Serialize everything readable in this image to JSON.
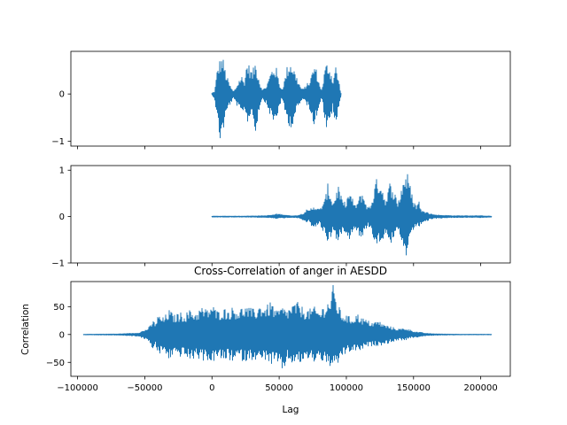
{
  "chart_data": [
    {
      "type": "line",
      "signal": "waveform-1",
      "xlim": [
        -105000,
        222000
      ],
      "ylim": [
        -1.1,
        0.9
      ],
      "yticks": [
        -1,
        0
      ],
      "xticks": [
        -100000,
        -50000,
        0,
        50000,
        100000,
        150000,
        200000
      ],
      "show_xtick_labels": false,
      "color": "#1f77b4",
      "data_range": [
        0,
        96000
      ],
      "envelope_x": [
        0,
        2000,
        4000,
        6000,
        8000,
        10000,
        12000,
        14000,
        16000,
        18000,
        20000,
        22000,
        24000,
        26000,
        28000,
        30000,
        32000,
        34000,
        36000,
        38000,
        40000,
        42000,
        44000,
        46000,
        48000,
        50000,
        52000,
        54000,
        56000,
        58000,
        60000,
        62000,
        64000,
        66000,
        68000,
        70000,
        72000,
        74000,
        76000,
        78000,
        80000,
        82000,
        84000,
        86000,
        88000,
        90000,
        92000,
        94000,
        96000
      ],
      "envelope_max": [
        0.02,
        0.05,
        0.55,
        0.75,
        0.8,
        0.5,
        0.3,
        0.15,
        0.05,
        0.15,
        0.3,
        0.4,
        0.25,
        0.7,
        0.6,
        0.45,
        0.7,
        0.5,
        0.2,
        0.1,
        0.15,
        0.3,
        0.5,
        0.6,
        0.55,
        0.25,
        0.1,
        0.3,
        0.6,
        0.7,
        0.65,
        0.45,
        0.3,
        0.15,
        0.1,
        0.2,
        0.25,
        0.4,
        0.65,
        0.5,
        0.2,
        0.1,
        0.55,
        0.7,
        0.55,
        0.3,
        0.62,
        0.35,
        0.02
      ],
      "envelope_min": [
        -0.02,
        -0.1,
        -0.6,
        -1.0,
        -0.85,
        -0.55,
        -0.3,
        -0.2,
        -0.1,
        -0.2,
        -0.35,
        -0.45,
        -0.3,
        -0.6,
        -0.55,
        -0.35,
        -0.9,
        -0.55,
        -0.2,
        -0.1,
        -0.2,
        -0.35,
        -0.5,
        -0.65,
        -0.55,
        -0.3,
        -0.1,
        -0.35,
        -0.6,
        -0.7,
        -0.7,
        -0.45,
        -0.3,
        -0.2,
        -0.1,
        -0.2,
        -0.3,
        -0.4,
        -0.7,
        -0.5,
        -0.2,
        -0.1,
        -0.6,
        -0.85,
        -0.6,
        -0.3,
        -0.8,
        -0.4,
        -0.02
      ]
    },
    {
      "type": "line",
      "signal": "waveform-2",
      "xlim": [
        -105000,
        222000
      ],
      "ylim": [
        -1.0,
        1.1
      ],
      "yticks": [
        -1,
        0,
        1
      ],
      "xticks": [
        -100000,
        -50000,
        0,
        50000,
        100000,
        150000,
        200000
      ],
      "show_xtick_labels": false,
      "color": "#1f77b4",
      "data_range": [
        0,
        208000
      ],
      "envelope_x": [
        0,
        20000,
        40000,
        46000,
        48000,
        52000,
        58000,
        62000,
        64000,
        66000,
        68000,
        70000,
        72000,
        74000,
        76000,
        78000,
        80000,
        82000,
        84000,
        86000,
        88000,
        90000,
        92000,
        94000,
        96000,
        98000,
        100000,
        102000,
        104000,
        106000,
        108000,
        110000,
        112000,
        114000,
        116000,
        118000,
        120000,
        122000,
        124000,
        126000,
        128000,
        130000,
        132000,
        134000,
        136000,
        138000,
        140000,
        142000,
        144000,
        146000,
        148000,
        150000,
        152000,
        154000,
        156000,
        158000,
        160000,
        162000,
        166000,
        172000,
        180000,
        190000,
        200000,
        208000
      ],
      "envelope_max": [
        0.01,
        0.01,
        0.02,
        0.04,
        0.06,
        0.05,
        0.02,
        0.02,
        0.03,
        0.05,
        0.08,
        0.15,
        0.12,
        0.2,
        0.25,
        0.2,
        0.15,
        0.28,
        0.35,
        0.72,
        0.55,
        0.3,
        0.5,
        0.7,
        0.45,
        0.3,
        0.35,
        0.55,
        0.45,
        0.25,
        0.3,
        0.45,
        0.55,
        0.35,
        0.2,
        0.25,
        0.5,
        0.8,
        0.85,
        0.75,
        0.5,
        0.35,
        0.75,
        0.7,
        0.55,
        0.3,
        0.5,
        0.8,
        0.98,
        0.92,
        0.6,
        0.35,
        0.25,
        0.35,
        0.15,
        0.1,
        0.15,
        0.07,
        0.04,
        0.03,
        0.02,
        0.02,
        0.02,
        0.01
      ],
      "envelope_min": [
        -0.01,
        -0.01,
        -0.02,
        -0.03,
        -0.04,
        -0.03,
        -0.02,
        -0.02,
        -0.03,
        -0.05,
        -0.08,
        -0.15,
        -0.1,
        -0.2,
        -0.25,
        -0.2,
        -0.15,
        -0.3,
        -0.35,
        -0.55,
        -0.5,
        -0.3,
        -0.45,
        -0.6,
        -0.4,
        -0.3,
        -0.35,
        -0.5,
        -0.4,
        -0.25,
        -0.3,
        -0.45,
        -0.5,
        -0.3,
        -0.2,
        -0.25,
        -0.45,
        -0.6,
        -0.6,
        -0.55,
        -0.45,
        -0.3,
        -0.55,
        -0.6,
        -0.5,
        -0.3,
        -0.5,
        -0.7,
        -0.92,
        -0.75,
        -0.55,
        -0.3,
        -0.2,
        -0.25,
        -0.15,
        -0.1,
        -0.12,
        -0.06,
        -0.04,
        -0.03,
        -0.02,
        -0.02,
        -0.02,
        -0.01
      ]
    },
    {
      "type": "line",
      "signal": "cross-correlation",
      "title": "Cross-Correlation of anger in AESDD",
      "xlabel": "Lag",
      "ylabel": "Correlation",
      "xlim": [
        -105000,
        222000
      ],
      "ylim": [
        -75,
        95
      ],
      "yticks": [
        -50,
        0,
        50
      ],
      "xticks": [
        -100000,
        -50000,
        0,
        50000,
        100000,
        150000,
        200000
      ],
      "xtick_labels": [
        "−100000",
        "−50000",
        "0",
        "50000",
        "100000",
        "150000",
        "200000"
      ],
      "ytick_labels": [
        "−50",
        "0",
        "50"
      ],
      "show_xtick_labels": true,
      "color": "#1f77b4",
      "data_range": [
        -96000,
        208000
      ],
      "envelope_x": [
        -96000,
        -70000,
        -55000,
        -50000,
        -46000,
        -44000,
        -42000,
        -40000,
        -36000,
        -32000,
        -28000,
        -24000,
        -20000,
        -16000,
        -12000,
        -8000,
        -4000,
        0,
        4000,
        8000,
        12000,
        16000,
        20000,
        24000,
        28000,
        32000,
        36000,
        40000,
        44000,
        48000,
        52000,
        56000,
        60000,
        64000,
        68000,
        72000,
        76000,
        80000,
        84000,
        88000,
        90000,
        92000,
        94000,
        96000,
        100000,
        104000,
        108000,
        112000,
        116000,
        120000,
        124000,
        128000,
        132000,
        136000,
        140000,
        144000,
        148000,
        152000,
        160000,
        170000,
        190000,
        208000
      ],
      "envelope_max": [
        0.5,
        1,
        3,
        8,
        15,
        25,
        22,
        35,
        30,
        45,
        35,
        40,
        38,
        45,
        40,
        50,
        45,
        55,
        42,
        48,
        45,
        50,
        45,
        52,
        48,
        45,
        55,
        50,
        60,
        42,
        50,
        45,
        55,
        58,
        48,
        45,
        50,
        42,
        55,
        65,
        90,
        70,
        55,
        40,
        35,
        30,
        38,
        30,
        25,
        22,
        25,
        18,
        15,
        12,
        10,
        12,
        8,
        5,
        2,
        1,
        0.5,
        0.5
      ],
      "envelope_min": [
        -0.5,
        -1,
        -3,
        -8,
        -15,
        -30,
        -20,
        -38,
        -30,
        -45,
        -35,
        -40,
        -38,
        -50,
        -40,
        -48,
        -45,
        -52,
        -42,
        -48,
        -45,
        -50,
        -42,
        -50,
        -45,
        -45,
        -50,
        -45,
        -55,
        -50,
        -72,
        -48,
        -52,
        -55,
        -48,
        -45,
        -50,
        -42,
        -55,
        -58,
        -70,
        -62,
        -55,
        -40,
        -35,
        -30,
        -30,
        -28,
        -22,
        -20,
        -20,
        -18,
        -15,
        -12,
        -10,
        -10,
        -6,
        -5,
        -2,
        -1,
        -0.5,
        -0.5
      ]
    }
  ]
}
